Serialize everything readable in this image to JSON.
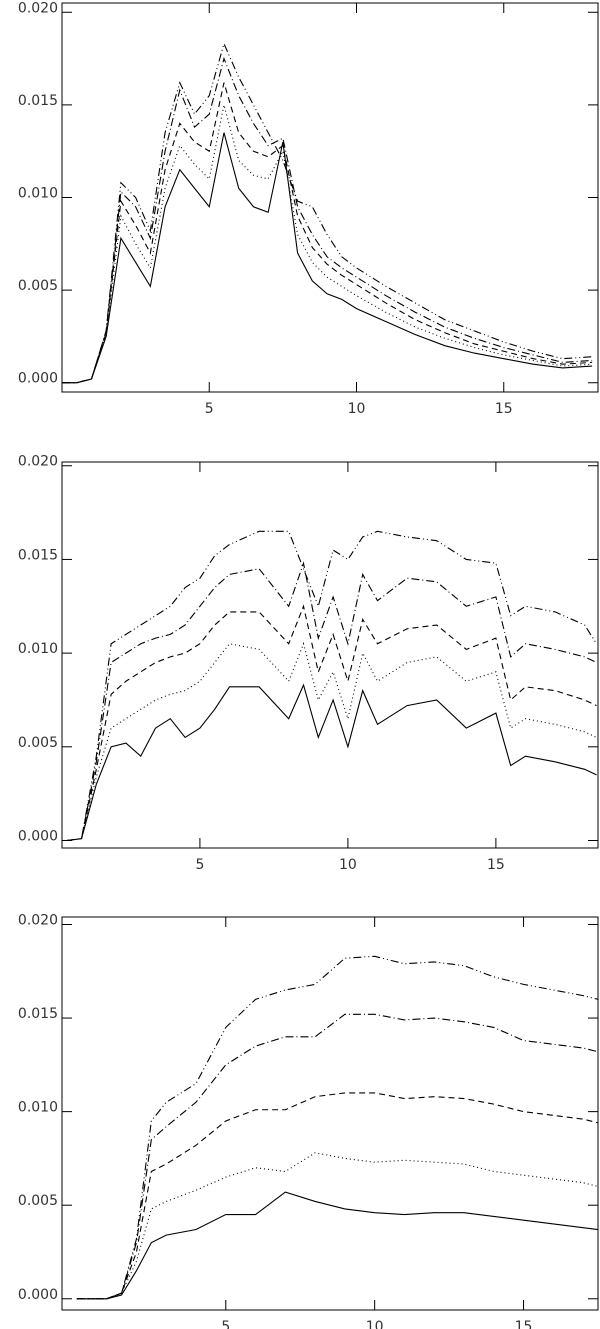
{
  "chart_data": [
    {
      "type": "line",
      "xlim": [
        0,
        18.2
      ],
      "ylim": [
        -0.0005,
        0.0205
      ],
      "xticks": [
        5,
        10,
        15
      ],
      "yticks": [
        {
          "value": 0,
          "label": "0.000"
        },
        {
          "value": 0.005,
          "label": "0.005"
        },
        {
          "value": 0.01,
          "label": "0.010"
        },
        {
          "value": 0.015,
          "label": "0.015"
        },
        {
          "value": 0.02,
          "label": "0.020"
        }
      ],
      "x": [
        0,
        0.5,
        1,
        1.5,
        2,
        2.5,
        3,
        3.5,
        4,
        4.5,
        5,
        5.5,
        6,
        6.5,
        7,
        7.5,
        8,
        8.5,
        9,
        9.5,
        10,
        11,
        12,
        13,
        14,
        15,
        16,
        17,
        18
      ],
      "series": [
        {
          "color": "#000000",
          "dash": "none",
          "values": [
            0,
            0,
            0.0002,
            0.0025,
            0.0078,
            0.0065,
            0.0052,
            0.0095,
            0.0115,
            0.0105,
            0.0095,
            0.0135,
            0.0105,
            0.0095,
            0.0092,
            0.013,
            0.007,
            0.0055,
            0.0048,
            0.0045,
            0.004,
            0.0033,
            0.0026,
            0.002,
            0.0016,
            0.0013,
            0.001,
            0.0008,
            0.0009
          ]
        },
        {
          "color": "#000000",
          "dash": "1 3",
          "values": [
            0,
            0,
            0.0002,
            0.0026,
            0.009,
            0.0075,
            0.0062,
            0.0105,
            0.0128,
            0.0118,
            0.011,
            0.015,
            0.012,
            0.0112,
            0.011,
            0.0125,
            0.008,
            0.0065,
            0.0057,
            0.0052,
            0.0047,
            0.0038,
            0.003,
            0.0024,
            0.0019,
            0.0015,
            0.0012,
            0.0009,
            0.001
          ]
        },
        {
          "color": "#000000",
          "dash": "6 4",
          "values": [
            0,
            0,
            0.0002,
            0.0027,
            0.0098,
            0.0085,
            0.007,
            0.0115,
            0.014,
            0.013,
            0.0125,
            0.0162,
            0.0135,
            0.0125,
            0.0122,
            0.0128,
            0.009,
            0.0073,
            0.0064,
            0.0058,
            0.0053,
            0.0043,
            0.0034,
            0.0027,
            0.0021,
            0.0017,
            0.0013,
            0.001,
            0.0011
          ]
        },
        {
          "color": "#000000",
          "dash": "8 3 1 3",
          "values": [
            0,
            0,
            0.0002,
            0.0028,
            0.0103,
            0.0095,
            0.0078,
            0.0125,
            0.0158,
            0.0138,
            0.0145,
            0.0175,
            0.0155,
            0.014,
            0.0128,
            0.0132,
            0.0095,
            0.008,
            0.0068,
            0.0062,
            0.0057,
            0.0047,
            0.0038,
            0.003,
            0.0024,
            0.0019,
            0.0015,
            0.0011,
            0.0012
          ]
        },
        {
          "color": "#000000",
          "dash": "8 3 1 3 1 3",
          "values": [
            0,
            0,
            0.0002,
            0.0028,
            0.0108,
            0.01,
            0.0082,
            0.0135,
            0.0162,
            0.0145,
            0.0155,
            0.0183,
            0.0165,
            0.015,
            0.0135,
            0.012,
            0.0098,
            0.0095,
            0.008,
            0.0068,
            0.0062,
            0.0052,
            0.0043,
            0.0034,
            0.0028,
            0.0022,
            0.0017,
            0.0013,
            0.0014
          ]
        }
      ]
    },
    {
      "type": "line",
      "xlim": [
        0.34,
        18.45
      ],
      "ylim": [
        -0.0004,
        0.0202
      ],
      "xticks": [
        5,
        10,
        15
      ],
      "yticks": [
        {
          "value": 0,
          "label": "0.000"
        },
        {
          "value": 0.005,
          "label": "0.005"
        },
        {
          "value": 0.01,
          "label": "0.010"
        },
        {
          "value": 0.015,
          "label": "0.015"
        },
        {
          "value": 0.02,
          "label": "0.020"
        }
      ],
      "x": [
        0.5,
        1,
        1.5,
        2,
        2.5,
        3,
        3.5,
        4,
        4.5,
        5,
        5.5,
        6,
        7,
        8,
        8.5,
        9,
        9.5,
        10,
        10.5,
        11,
        12,
        13,
        14,
        15,
        15.5,
        16,
        17,
        18,
        18.4
      ],
      "series": [
        {
          "color": "#000000",
          "dash": "none",
          "values": [
            0,
            0.0001,
            0.003,
            0.005,
            0.0052,
            0.0045,
            0.006,
            0.0065,
            0.0055,
            0.006,
            0.007,
            0.0082,
            0.0082,
            0.0065,
            0.0083,
            0.0055,
            0.0075,
            0.005,
            0.008,
            0.0062,
            0.0072,
            0.0075,
            0.006,
            0.0068,
            0.004,
            0.0045,
            0.0042,
            0.0038,
            0.0035
          ]
        },
        {
          "color": "#000000",
          "dash": "1 3",
          "values": [
            0,
            0.0001,
            0.0034,
            0.006,
            0.0065,
            0.007,
            0.0075,
            0.0078,
            0.008,
            0.0085,
            0.0095,
            0.0105,
            0.0102,
            0.0085,
            0.0105,
            0.0075,
            0.009,
            0.0065,
            0.01,
            0.0085,
            0.0095,
            0.0098,
            0.0085,
            0.009,
            0.006,
            0.0065,
            0.0062,
            0.0058,
            0.0055
          ]
        },
        {
          "color": "#000000",
          "dash": "6 4",
          "values": [
            0,
            0.0001,
            0.0038,
            0.0078,
            0.0085,
            0.009,
            0.0095,
            0.0098,
            0.01,
            0.0105,
            0.0115,
            0.0122,
            0.0122,
            0.0105,
            0.0125,
            0.009,
            0.011,
            0.0085,
            0.0118,
            0.0105,
            0.0113,
            0.0115,
            0.0102,
            0.0108,
            0.0075,
            0.0082,
            0.008,
            0.0075,
            0.0072
          ]
        },
        {
          "color": "#000000",
          "dash": "8 3 1 3",
          "values": [
            0,
            0.0001,
            0.0042,
            0.0095,
            0.01,
            0.0105,
            0.0108,
            0.011,
            0.0115,
            0.0125,
            0.0135,
            0.0142,
            0.0145,
            0.0125,
            0.0148,
            0.0108,
            0.013,
            0.0105,
            0.0142,
            0.0128,
            0.014,
            0.0138,
            0.0125,
            0.013,
            0.0098,
            0.0105,
            0.0102,
            0.0098,
            0.0095
          ]
        },
        {
          "color": "#000000",
          "dash": "8 3 1 3 1 3",
          "values": [
            0,
            0.0001,
            0.0045,
            0.0105,
            0.011,
            0.0115,
            0.012,
            0.0125,
            0.0135,
            0.014,
            0.0152,
            0.0158,
            0.0165,
            0.0165,
            0.0145,
            0.0125,
            0.0155,
            0.015,
            0.0162,
            0.0165,
            0.0162,
            0.016,
            0.015,
            0.0148,
            0.012,
            0.0125,
            0.0122,
            0.0115,
            0.0105
          ]
        }
      ]
    },
    {
      "type": "line",
      "xlim": [
        -0.5,
        17.5
      ],
      "ylim": [
        -0.0006,
        0.0204
      ],
      "xticks": [
        5,
        10,
        15
      ],
      "yticks": [
        {
          "value": 0,
          "label": "0.000"
        },
        {
          "value": 0.005,
          "label": "0.005"
        },
        {
          "value": 0.01,
          "label": "0.010"
        },
        {
          "value": 0.015,
          "label": "0.015"
        },
        {
          "value": 0.02,
          "label": "0.020"
        }
      ],
      "x": [
        0,
        0.5,
        1,
        1.5,
        2,
        2.5,
        3,
        4,
        5,
        6,
        7,
        8,
        9,
        10,
        11,
        12,
        13,
        14,
        15,
        16,
        17,
        17.5
      ],
      "series": [
        {
          "color": "#000000",
          "dash": "none",
          "values": [
            0,
            0,
            0,
            0.0002,
            0.0015,
            0.003,
            0.0034,
            0.0037,
            0.0045,
            0.0045,
            0.0057,
            0.0052,
            0.0048,
            0.0046,
            0.0045,
            0.0046,
            0.0046,
            0.0044,
            0.0042,
            0.004,
            0.0038,
            0.0037
          ]
        },
        {
          "color": "#000000",
          "dash": "1 3",
          "values": [
            0,
            0,
            0,
            0.0003,
            0.002,
            0.0048,
            0.0052,
            0.0058,
            0.0065,
            0.007,
            0.0068,
            0.0078,
            0.0075,
            0.0073,
            0.0074,
            0.0073,
            0.0072,
            0.0068,
            0.0066,
            0.0064,
            0.0062,
            0.006
          ]
        },
        {
          "color": "#000000",
          "dash": "6 4",
          "values": [
            0,
            0,
            0,
            0.0003,
            0.0025,
            0.0068,
            0.0072,
            0.0082,
            0.0095,
            0.0101,
            0.0101,
            0.0108,
            0.011,
            0.011,
            0.0107,
            0.0108,
            0.0107,
            0.0104,
            0.01,
            0.0098,
            0.0096,
            0.0094
          ]
        },
        {
          "color": "#000000",
          "dash": "8 3 1 3",
          "values": [
            0,
            0,
            0,
            0.0003,
            0.003,
            0.0085,
            0.0092,
            0.0105,
            0.0125,
            0.0135,
            0.014,
            0.014,
            0.0152,
            0.0152,
            0.0149,
            0.015,
            0.0148,
            0.0145,
            0.0138,
            0.0136,
            0.0134,
            0.0132
          ]
        },
        {
          "color": "#000000",
          "dash": "8 3 1 3 1 3",
          "values": [
            0,
            0,
            0,
            0.0003,
            0.0032,
            0.0095,
            0.0105,
            0.0115,
            0.0145,
            0.016,
            0.0165,
            0.0168,
            0.0182,
            0.0183,
            0.0179,
            0.018,
            0.0178,
            0.0172,
            0.0168,
            0.0165,
            0.0162,
            0.016
          ]
        }
      ]
    }
  ]
}
